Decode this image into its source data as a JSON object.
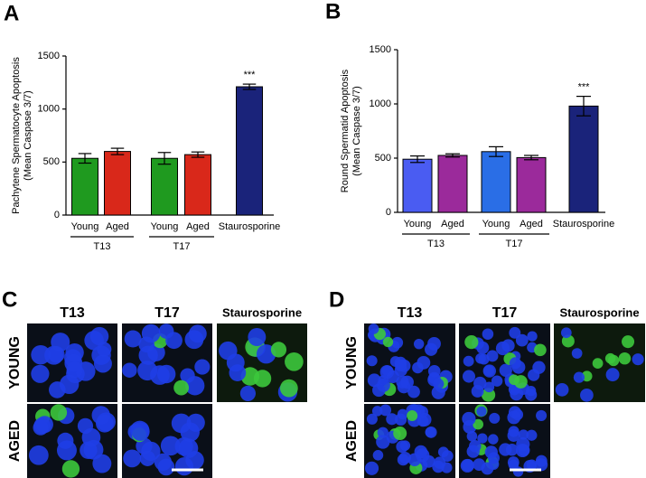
{
  "panel_labels": [
    "A",
    "B",
    "C",
    "D"
  ],
  "chart_data": [
    {
      "type": "bar",
      "ylabel": [
        "Pachytene Spermatocyte Apoptosis",
        "(Mean Caspase 3/7)"
      ],
      "categories": [
        "Young",
        "Aged",
        "Young",
        "Aged",
        "Staurosporine"
      ],
      "groups": [
        "T13",
        "T17"
      ],
      "values": [
        535,
        600,
        535,
        570,
        1210
      ],
      "errors": [
        45,
        30,
        55,
        25,
        25
      ],
      "colors": [
        "#1f9a1f",
        "#d9281a",
        "#1f9a1f",
        "#d9281a",
        "#1a237a"
      ],
      "annotations": [
        null,
        null,
        null,
        null,
        "***"
      ],
      "ylim": [
        0,
        1500
      ],
      "yticks": [
        0,
        500,
        1000,
        1500
      ]
    },
    {
      "type": "bar",
      "ylabel": [
        "Round Spermatid Apoptosis",
        "(Mean Caspase 3/7)"
      ],
      "categories": [
        "Young",
        "Aged",
        "Young",
        "Aged",
        "Staurosporine"
      ],
      "groups": [
        "T13",
        "T17"
      ],
      "values": [
        490,
        525,
        560,
        505,
        980
      ],
      "errors": [
        30,
        15,
        45,
        20,
        90
      ],
      "colors": [
        "#4a5cf2",
        "#9b2a9b",
        "#2a6ee6",
        "#9b2a9b",
        "#1a237a"
      ],
      "annotations": [
        null,
        null,
        null,
        null,
        "***"
      ],
      "ylim": [
        0,
        1500
      ],
      "yticks": [
        0,
        500,
        1000,
        1500
      ]
    }
  ],
  "image_panels": [
    {
      "columns": [
        "T13",
        "T17",
        "Staurosporine"
      ],
      "rows": [
        "YOUNG",
        "AGED"
      ]
    },
    {
      "columns": [
        "T13",
        "T17",
        "Staurosporine"
      ],
      "rows": [
        "YOUNG",
        "AGED"
      ]
    }
  ]
}
